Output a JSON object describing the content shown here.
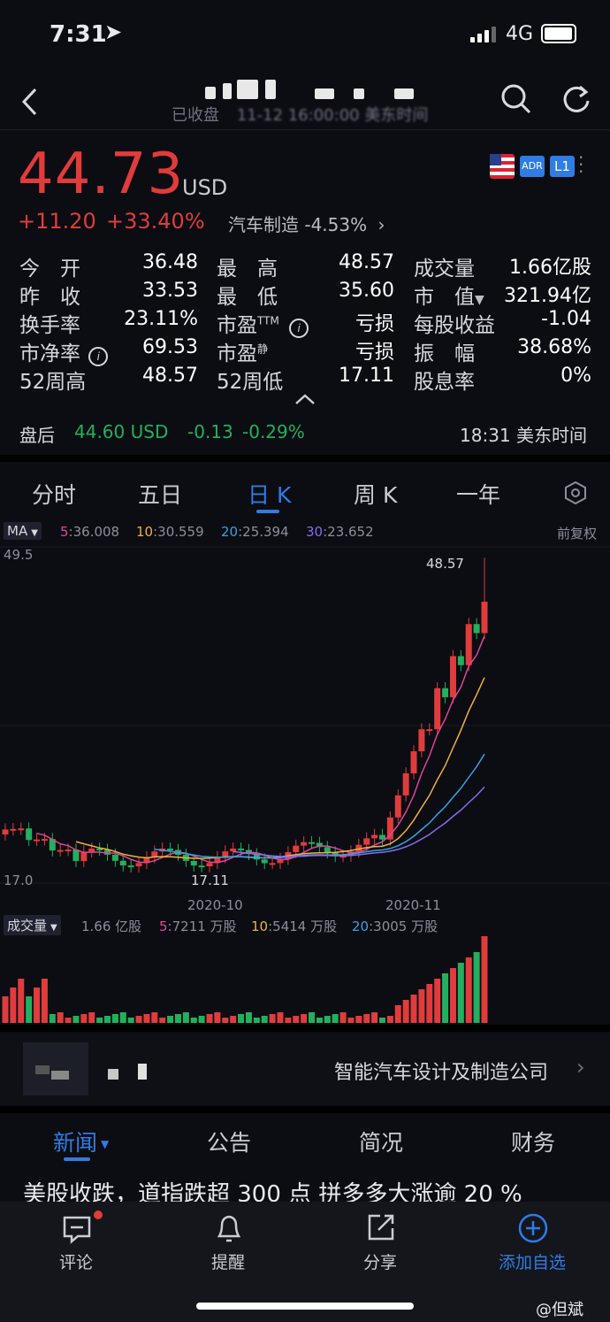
{
  "status_bar": {
    "time": "7:31",
    "network": "4G"
  },
  "header": {
    "market_status": "已收盘",
    "timestamp_partial": "11-12 16:00:00 美东时间"
  },
  "quote": {
    "price": "44.73",
    "currency": "USD",
    "change": "+11.20",
    "change_pct": "+33.40%",
    "sector": "汽车制造 -4.53%",
    "badges": [
      "ADR",
      "L1"
    ]
  },
  "stats": [
    {
      "label": "今　开",
      "value": "36.48"
    },
    {
      "label": "最　高",
      "value": "48.57"
    },
    {
      "label": "成交量",
      "value": "1.66亿股"
    },
    {
      "label": "昨　收",
      "value": "33.53"
    },
    {
      "label": "最　低",
      "value": "35.60"
    },
    {
      "label": "市　值",
      "value": "321.94亿"
    },
    {
      "label": "换手率",
      "value": "23.11%"
    },
    {
      "label": "市盈",
      "value": "亏损"
    },
    {
      "label": "每股收益",
      "value": "-1.04"
    },
    {
      "label": "市净率",
      "value": "69.53"
    },
    {
      "label": "市盈",
      "value": "亏损"
    },
    {
      "label": "振　幅",
      "value": "38.68%"
    },
    {
      "label": "52周高",
      "value": "48.57"
    },
    {
      "label": "52周低",
      "value": "17.11"
    },
    {
      "label": "股息率",
      "value": "0%"
    }
  ],
  "stat_superscripts": {
    "ttm": "TTM",
    "static": "静"
  },
  "after_hours": {
    "label": "盘后",
    "price": "44.60 USD",
    "change": "-0.13",
    "change_pct": "-0.29%",
    "time": "18:31 美东时间"
  },
  "chart_tabs": [
    "分时",
    "五日",
    "日 K",
    "周 K",
    "一年"
  ],
  "active_tab": "日 K",
  "ma_bar": {
    "selector": "MA",
    "items": [
      {
        "key": "5",
        "value": ":36.008",
        "color": "#e0459b"
      },
      {
        "key": "10",
        "value": ":30.559",
        "color": "#f0b13c"
      },
      {
        "key": "20",
        "value": ":25.394",
        "color": "#3aa0e6"
      },
      {
        "key": "30",
        "value": ":23.652",
        "color": "#8a6cf0"
      }
    ],
    "adjust": "前复权"
  },
  "price_axis": {
    "top": "49.5",
    "bottom": "17.0",
    "high_label": "48.57",
    "low_label": "17.11"
  },
  "date_labels": [
    "2020-10",
    "2020-11"
  ],
  "volume_bar": {
    "selector": "成交量",
    "total": "1.66 亿股",
    "items": [
      {
        "key": "5",
        "value": ":7211 万股",
        "color": "#e0459b"
      },
      {
        "key": "10",
        "value": ":5414 万股",
        "color": "#f0b13c"
      },
      {
        "key": "20",
        "value": ":3005 万股",
        "color": "#3aa0e6"
      }
    ]
  },
  "company": {
    "description": "智能汽车设计及制造公司"
  },
  "news_tabs": [
    "新闻",
    "公告",
    "简况",
    "财务"
  ],
  "news_headline": "美股收跌，道指跌超 300 点 拼多多大涨逾 20 %",
  "toolbar": [
    {
      "label": "评论",
      "icon": "comment-icon"
    },
    {
      "label": "提醒",
      "icon": "bell-icon"
    },
    {
      "label": "分享",
      "icon": "share-icon"
    },
    {
      "label": "添加自选",
      "icon": "add-circle-icon"
    }
  ],
  "watermark": "@但斌",
  "colors": {
    "up": "#e23b3b",
    "down": "#23b05c",
    "accent": "#2f7ce6"
  },
  "chart_data": {
    "type": "candlestick",
    "x": [
      "2020-10",
      "2020-11"
    ],
    "ylim": [
      17.0,
      49.5
    ],
    "high": 48.57,
    "low": 17.11,
    "ma": {
      "ma5": 36.008,
      "ma10": 30.559,
      "ma20": 25.394,
      "ma30": 23.652
    }
  }
}
